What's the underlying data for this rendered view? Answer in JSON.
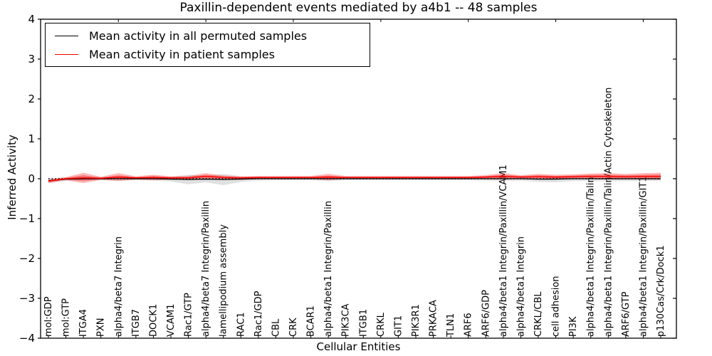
{
  "figure": {
    "title": "Paxillin-dependent events mediated by a4b1 -- 48 samples",
    "xlabel": "Cellular Entities",
    "ylabel": "Inferred Activity"
  },
  "legend": {
    "position": "upper left",
    "items": [
      {
        "label": "Mean activity in all permuted samples",
        "color": "#000000"
      },
      {
        "label": "Mean activity in patient samples",
        "color": "#ff0000"
      }
    ]
  },
  "chart_data": {
    "type": "line",
    "title": "Paxillin-dependent events mediated by a4b1 -- 48 samples",
    "xlabel": "Cellular Entities",
    "ylabel": "Inferred Activity",
    "ylim": [
      -4,
      4
    ],
    "ytick_values": [
      4,
      3,
      2,
      1,
      0,
      -1,
      -2,
      -3,
      -4
    ],
    "ytick_labels": [
      "4",
      "3",
      "2",
      "1",
      "0",
      "−1",
      "−2",
      "−3",
      "−4"
    ],
    "grid": false,
    "legend_position": "upper left",
    "categories": [
      "mol:GDP",
      "mol:GTP",
      "ITGA4",
      "PXN",
      "alpha4/beta7 Integrin",
      "ITGB7",
      "DOCK1",
      "VCAM1",
      "Rac1/GTP",
      "alpha4/beta7 Integrin/Paxillin",
      "lamellipodium assembly",
      "RAC1",
      "Rac1/GDP",
      "CBL",
      "CRK",
      "BCAR1",
      "alpha4/beta1 Integrin/Paxillin",
      "PIK3CA",
      "ITGB1",
      "CRKL",
      "GIT1",
      "PIK3R1",
      "PRKACA",
      "TLN1",
      "ARF6",
      "ARF6/GDP",
      "alpha4/beta1 Integrin/Paxillin/VCAM1",
      "alpha4/beta1 Integrin",
      "CRKL/CBL",
      "cell adhesion",
      "PI3K",
      "alpha4/beta1 Integrin/Paxillin/Talin",
      "alpha4/beta1 Integrin/Paxillin/Talin/Actin Cytoskeleton",
      "ARF6/GTP",
      "alpha4/beta1 Integrin/Paxillin/GIT1",
      "p130Cas/Crk/Dock1"
    ],
    "series": [
      {
        "name": "Mean activity in all permuted samples",
        "color": "#000000",
        "style": "solid",
        "values": [
          -0.05,
          -0.01,
          0,
          0,
          0,
          0,
          0,
          -0.01,
          -0.02,
          -0.01,
          -0.02,
          -0.01,
          0,
          0,
          0,
          0,
          0,
          0,
          0,
          0,
          0,
          0,
          0,
          0,
          0,
          0,
          0,
          0,
          -0.01,
          -0.01,
          0,
          0,
          0,
          0,
          0,
          0
        ]
      },
      {
        "name": "Mean activity in patient samples",
        "color": "#ff0000",
        "style": "solid",
        "values": [
          -0.06,
          0,
          0.02,
          0.01,
          0.04,
          0.02,
          0.03,
          0.02,
          0.02,
          0.06,
          0.03,
          0.02,
          0.03,
          0.03,
          0.03,
          0.03,
          0.04,
          0.03,
          0.03,
          0.03,
          0.03,
          0.03,
          0.03,
          0.03,
          0.03,
          0.04,
          0.06,
          0.04,
          0.05,
          0.04,
          0.05,
          0.06,
          0.06,
          0.05,
          0.06,
          0.06
        ]
      }
    ],
    "reference_line": {
      "y": 0,
      "style": "dotted",
      "color": "#000000"
    },
    "bands": [
      {
        "name": "permuted-samples-spread",
        "color": "#999999",
        "opacity": 0.3,
        "upper": [
          0,
          0.03,
          0.06,
          0.04,
          0.05,
          0.04,
          0.05,
          0.05,
          0.1,
          0.07,
          0.12,
          0.06,
          0.05,
          0.04,
          0.04,
          0.04,
          0.06,
          0.04,
          0.04,
          0.04,
          0.04,
          0.04,
          0.04,
          0.04,
          0.04,
          0.05,
          0.06,
          0.05,
          0.06,
          0.07,
          0.06,
          0.06,
          0.06,
          0.06,
          0.06,
          0.05
        ],
        "lower": [
          -0.1,
          -0.05,
          -0.06,
          -0.04,
          -0.05,
          -0.04,
          -0.05,
          -0.07,
          -0.14,
          -0.09,
          -0.16,
          -0.08,
          -0.05,
          -0.04,
          -0.04,
          -0.04,
          -0.06,
          -0.04,
          -0.04,
          -0.04,
          -0.04,
          -0.04,
          -0.04,
          -0.04,
          -0.04,
          -0.05,
          -0.06,
          -0.05,
          -0.08,
          -0.09,
          -0.06,
          -0.06,
          -0.06,
          -0.06,
          -0.06,
          -0.05
        ]
      },
      {
        "name": "patient-samples-spread-outer",
        "color": "#ff0000",
        "opacity": 0.28,
        "upper": [
          -0.01,
          0.04,
          0.15,
          0.05,
          0.14,
          0.06,
          0.1,
          0.06,
          0.07,
          0.14,
          0.08,
          0.06,
          0.07,
          0.07,
          0.07,
          0.07,
          0.12,
          0.07,
          0.07,
          0.07,
          0.07,
          0.07,
          0.07,
          0.07,
          0.07,
          0.09,
          0.14,
          0.09,
          0.12,
          0.1,
          0.11,
          0.13,
          0.14,
          0.12,
          0.14,
          0.15
        ],
        "lower": [
          -0.11,
          -0.04,
          -0.11,
          -0.03,
          -0.06,
          -0.02,
          -0.04,
          -0.02,
          -0.03,
          -0.02,
          -0.02,
          -0.02,
          -0.01,
          -0.01,
          -0.01,
          -0.01,
          -0.04,
          -0.01,
          -0.01,
          -0.01,
          -0.01,
          -0.01,
          -0.01,
          -0.01,
          -0.01,
          -0.01,
          -0.02,
          -0.01,
          -0.02,
          -0.02,
          -0.01,
          -0.01,
          -0.02,
          -0.02,
          -0.02,
          -0.03
        ]
      },
      {
        "name": "patient-samples-spread-inner",
        "color": "#ee2222",
        "opacity": 0.38,
        "upper": [
          -0.04,
          0.02,
          0.09,
          0.03,
          0.09,
          0.04,
          0.07,
          0.04,
          0.05,
          0.1,
          0.06,
          0.04,
          0.05,
          0.05,
          0.05,
          0.05,
          0.08,
          0.05,
          0.05,
          0.05,
          0.05,
          0.05,
          0.05,
          0.05,
          0.05,
          0.07,
          0.1,
          0.07,
          0.09,
          0.07,
          0.08,
          0.1,
          0.1,
          0.09,
          0.1,
          0.11
        ],
        "lower": [
          -0.09,
          -0.02,
          -0.05,
          -0.01,
          -0.01,
          0,
          0,
          0,
          0,
          0.02,
          0,
          0,
          0.01,
          0.01,
          0.01,
          0.01,
          0,
          0.01,
          0.01,
          0.01,
          0.01,
          0.01,
          0.01,
          0.01,
          0.01,
          0.02,
          0.02,
          0.02,
          0.02,
          0.01,
          0.02,
          0.03,
          0.02,
          0.02,
          0.02,
          0.02
        ]
      }
    ]
  }
}
